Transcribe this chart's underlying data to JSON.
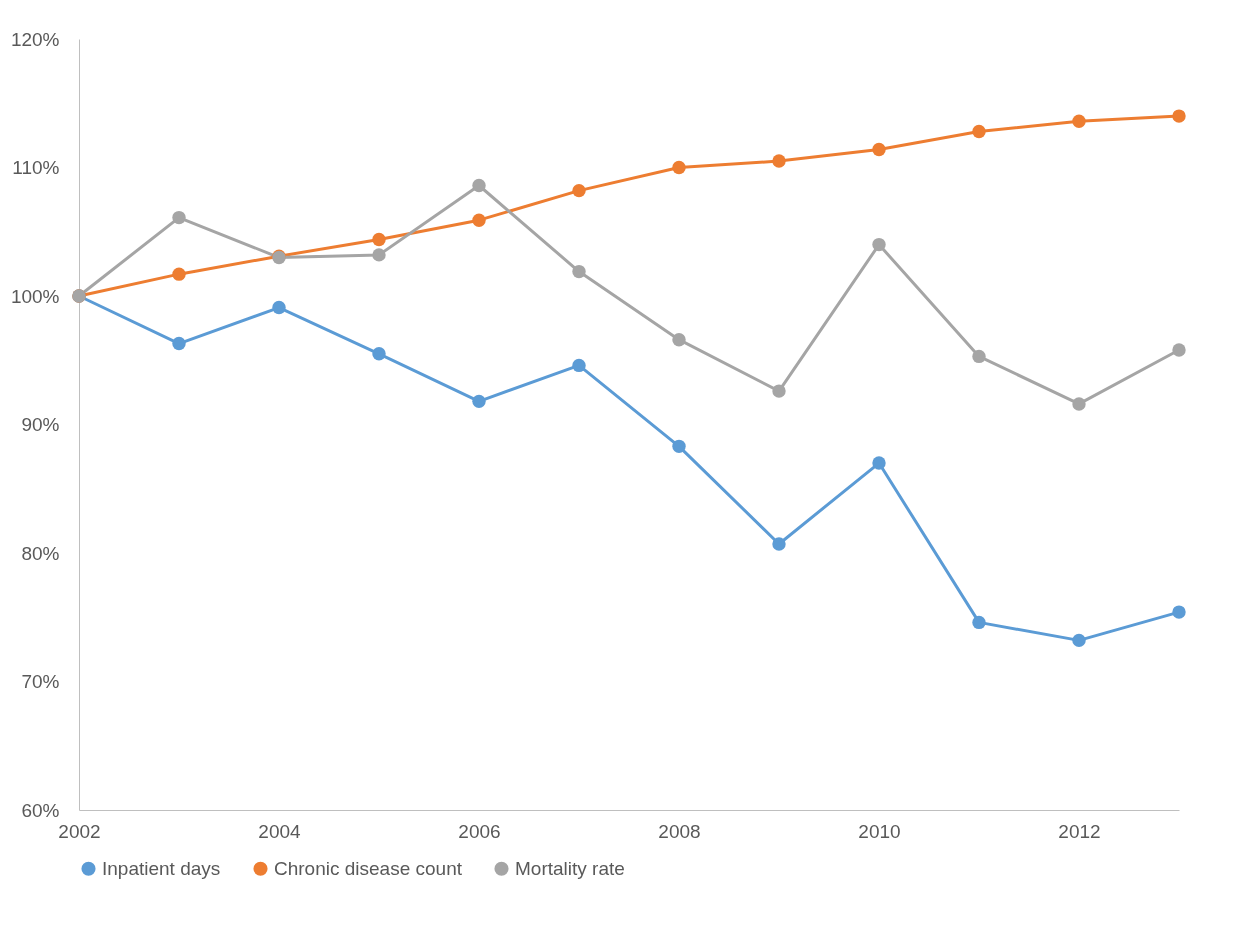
{
  "chart_data": {
    "type": "line",
    "x": [
      2002,
      2003,
      2004,
      2005,
      2006,
      2007,
      2008,
      2009,
      2010,
      2011,
      2012,
      2013
    ],
    "xlim": [
      2002,
      2013
    ],
    "xticks": [
      2002,
      2004,
      2006,
      2008,
      2010,
      2012
    ],
    "ylim": [
      60,
      120
    ],
    "yticks": [
      {
        "value": 60,
        "label": "60%"
      },
      {
        "value": 70,
        "label": "70%"
      },
      {
        "value": 80,
        "label": "80%"
      },
      {
        "value": 90,
        "label": "90%"
      },
      {
        "value": 100,
        "label": "100%"
      },
      {
        "value": 110,
        "label": "110%"
      },
      {
        "value": 120,
        "label": "120%"
      }
    ],
    "series": [
      {
        "name": "Inpatient days",
        "color": "#5b9bd5",
        "values": [
          100,
          96.3,
          99.1,
          95.5,
          91.8,
          94.6,
          88.3,
          80.7,
          87.0,
          74.6,
          73.2,
          75.4
        ]
      },
      {
        "name": "Chronic disease count",
        "color": "#ed7d31",
        "values": [
          100,
          101.7,
          103.1,
          104.4,
          105.9,
          108.2,
          110.0,
          110.5,
          111.4,
          112.8,
          113.6,
          114.0
        ]
      },
      {
        "name": "Mortality rate",
        "color": "#a5a5a5",
        "values": [
          100,
          106.1,
          103.0,
          103.2,
          108.6,
          101.9,
          96.6,
          92.6,
          104.0,
          95.3,
          91.6,
          95.8
        ]
      }
    ],
    "grid": false,
    "legend": "bottom",
    "marker": "circle",
    "line_style": "solid"
  }
}
